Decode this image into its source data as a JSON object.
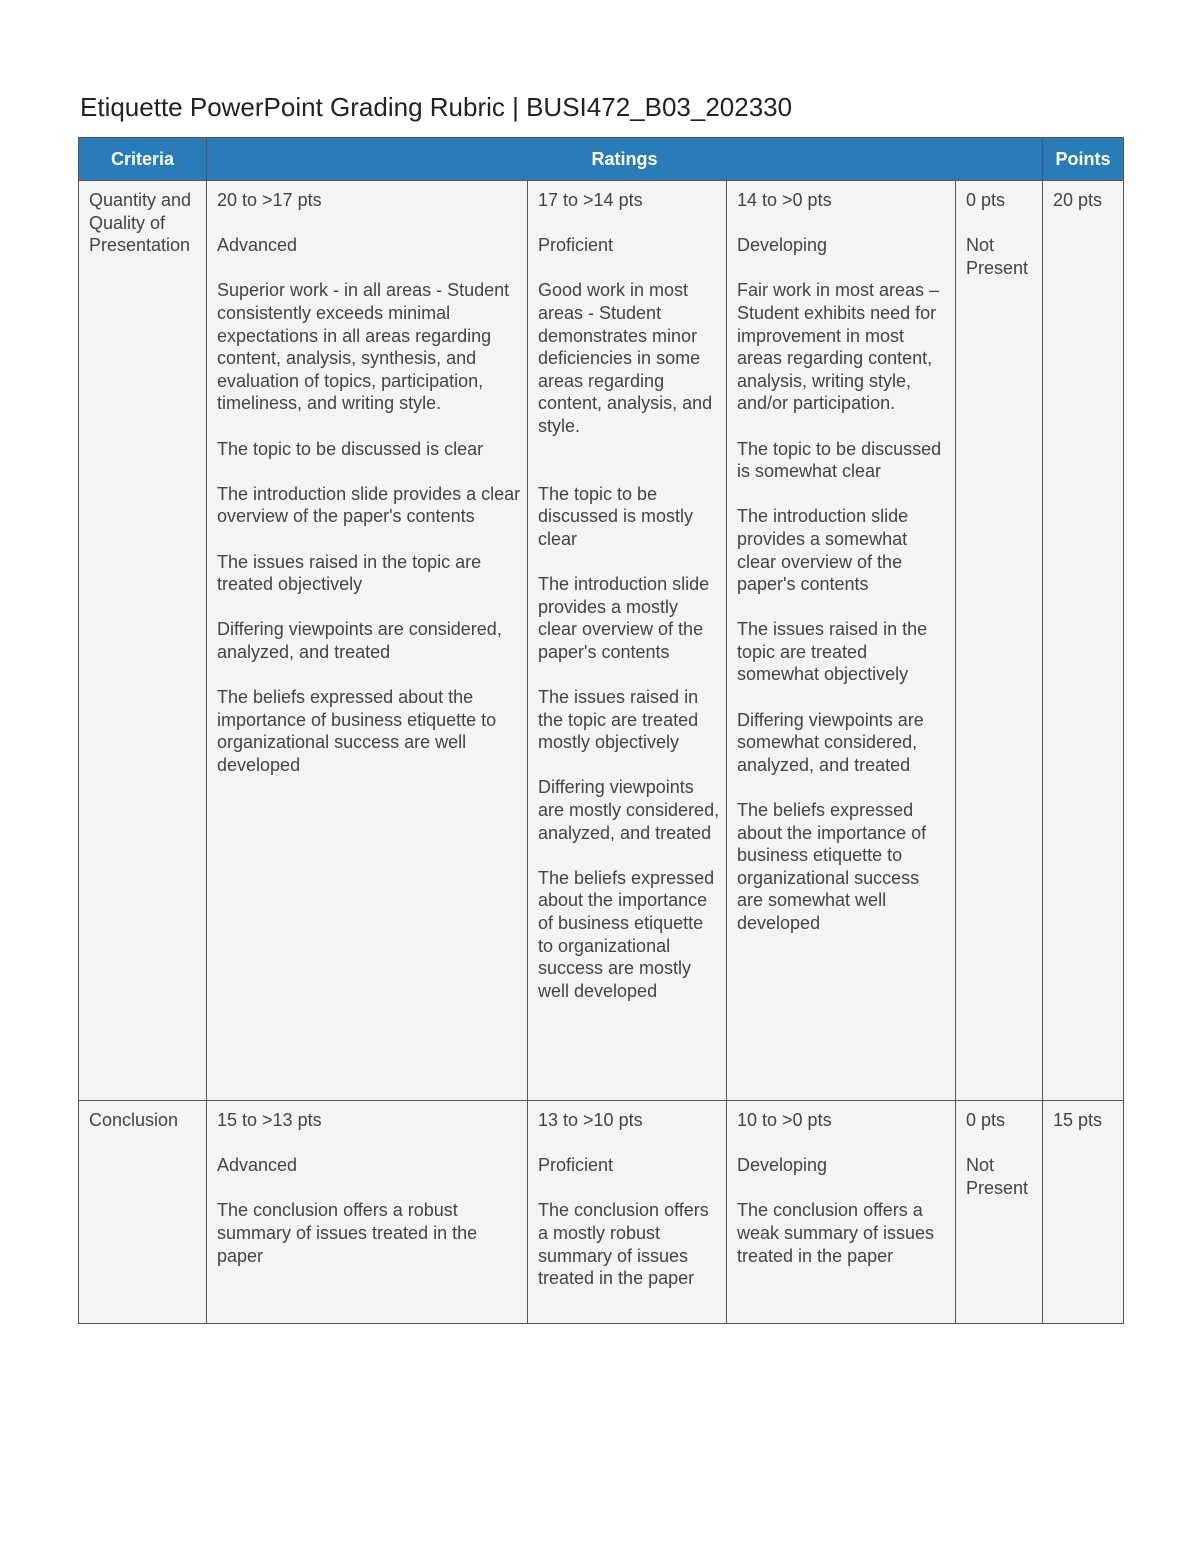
{
  "title": "Etiquette PowerPoint Grading Rubric | BUSI472_B03_202330",
  "headers": {
    "criteria": "Criteria",
    "ratings": "Ratings",
    "points": "Points"
  },
  "rows": [
    {
      "criteria": "Quantity and Quality of Presentation",
      "points": "20 pts",
      "ratings": [
        {
          "pts": "20 to >17 pts",
          "level": "Advanced",
          "paragraphs": [
            "Superior work - in all areas - Student consistently exceeds minimal expectations in all areas regarding content, analysis, synthesis, and evaluation of topics, participation, timeliness, and writing style.",
            "The topic to be discussed is clear",
            "The introduction slide provides a clear overview of the paper's contents",
            "The issues raised in the topic are treated objectively",
            "Differing viewpoints are considered, analyzed, and treated",
            "The beliefs expressed about the importance of business etiquette to organizational success are well developed"
          ]
        },
        {
          "pts": "17 to >14 pts",
          "level": "Proficient",
          "paragraphs": [
            "Good work in most areas - Student demonstrates minor deficiencies in some areas regarding content, analysis, and style.",
            "",
            "The topic to be discussed is mostly clear",
            "The introduction slide provides a mostly clear overview of the paper's contents",
            "The issues raised in the topic are treated mostly objectively",
            "Differing viewpoints are mostly considered, analyzed, and treated",
            "The beliefs expressed about the importance of business etiquette to organizational success are mostly well developed"
          ]
        },
        {
          "pts": "14 to >0 pts",
          "level": "Developing",
          "paragraphs": [
            "Fair work in most areas – Student exhibits need for improvement in most areas regarding content, analysis, writing style, and/or participation.",
            "The topic to be discussed is somewhat clear",
            "The introduction slide provides a somewhat clear overview of the paper's contents",
            "The issues raised in the topic are treated somewhat objectively",
            "Differing viewpoints are somewhat considered, analyzed, and treated",
            "The beliefs expressed about the importance of business etiquette to organizational success are somewhat well developed"
          ]
        },
        {
          "pts": "0 pts",
          "level": "Not Present",
          "paragraphs": []
        }
      ]
    },
    {
      "criteria": "Conclusion",
      "points": "15 pts",
      "ratings": [
        {
          "pts": "15 to >13 pts",
          "level": "Advanced",
          "paragraphs": [
            "The conclusion offers a robust summary of issues treated in the paper"
          ]
        },
        {
          "pts": "13 to >10 pts",
          "level": "Proficient",
          "paragraphs": [
            "The conclusion offers a mostly robust summary of issues treated in the paper"
          ]
        },
        {
          "pts": "10 to >0 pts",
          "level": "Developing",
          "paragraphs": [
            "The conclusion offers a weak summary of issues treated in the paper"
          ]
        },
        {
          "pts": "0 pts",
          "level": "Not Present",
          "paragraphs": []
        }
      ]
    }
  ]
}
